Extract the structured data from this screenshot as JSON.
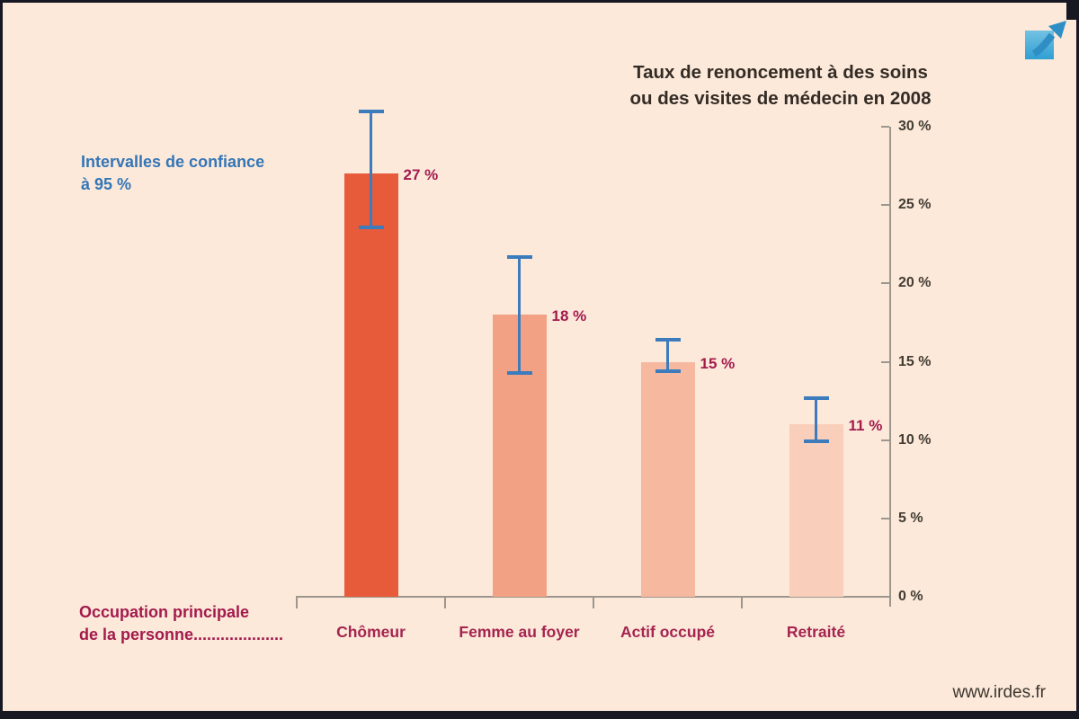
{
  "title": {
    "line1": "Taux de renoncement à des soins",
    "line2": "ou des visites de médecin en 2008"
  },
  "legend": {
    "line1": "Intervalles de confiance",
    "line2": "à 95 %"
  },
  "x_axis_title": {
    "line1": "Occupation principale",
    "line2": "de la personne...................."
  },
  "footer": {
    "site": "www.irdes.fr"
  },
  "icon": {
    "name": "expand-arrow-icon",
    "color": "#2f8fc4"
  },
  "colors": {
    "background": "#fce9da",
    "frame_border": "#181822",
    "accent_crimson": "#a31a4d",
    "legend_blue": "#3476b6",
    "error_bar_blue": "#3c7cbd",
    "axis_gray": "#9c968e",
    "text_dark": "#332c25"
  },
  "chart_data": {
    "type": "bar",
    "title": "Taux de renoncement à des soins ou des visites de médecin en 2008",
    "xlabel": "Occupation principale de la personne",
    "ylabel": "",
    "categories": [
      "Chômeur",
      "Femme au foyer",
      "Actif occupé",
      "Retraité"
    ],
    "values": [
      27,
      18,
      15,
      11
    ],
    "value_labels": [
      "27 %",
      "18 %",
      "15 %",
      "11 %"
    ],
    "error_bars": {
      "confidence_level": "95 %",
      "upper": [
        31.0,
        21.7,
        16.4,
        12.7
      ],
      "lower": [
        23.6,
        14.3,
        14.4,
        9.9
      ]
    },
    "bar_colors": [
      "#e75b3b",
      "#f2a184",
      "#f6b99f",
      "#f9cfbb"
    ],
    "ylim": [
      0,
      30
    ],
    "yticks": [
      0,
      5,
      10,
      15,
      20,
      25,
      30
    ],
    "ytick_labels": [
      "0 %",
      "5 %",
      "10 %",
      "15 %",
      "20 %",
      "25 %",
      "30 %"
    ],
    "yaxis_position": "right",
    "grid": false,
    "legend_position": "upper-left"
  }
}
